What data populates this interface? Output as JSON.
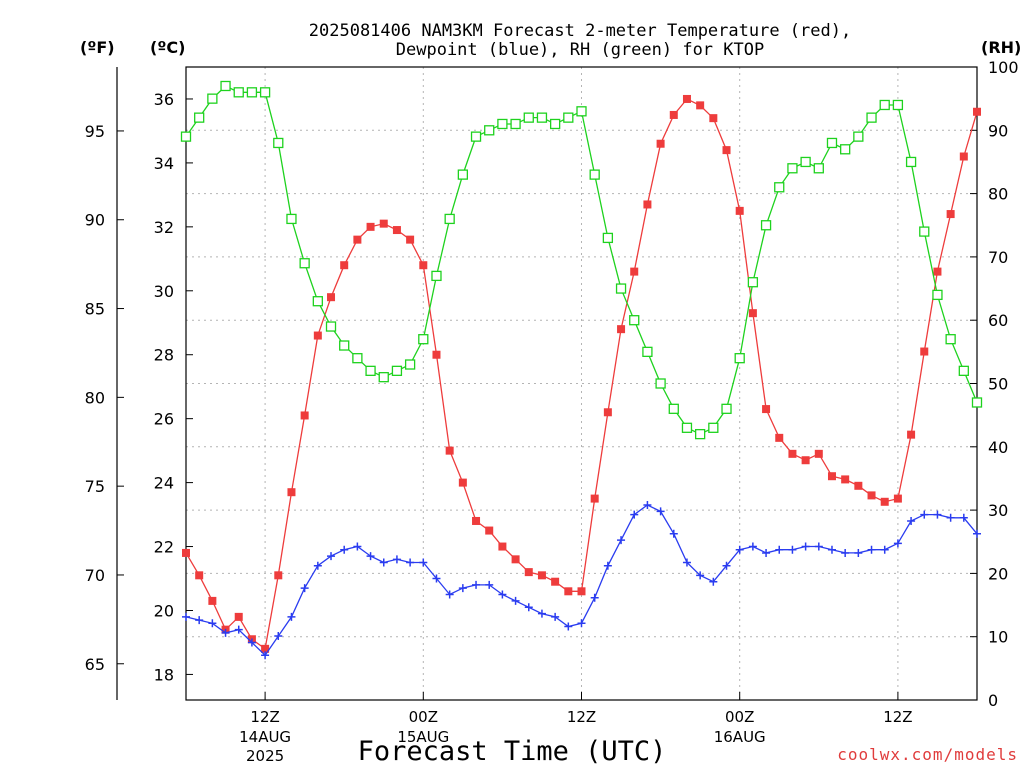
{
  "chart_data": {
    "type": "line",
    "title_line1": "2025081406 NAM3KM Forecast 2-meter Temperature (red),",
    "title_line2": "Dewpoint (blue), RH (green) for KTOP",
    "unit_left_f": "(ºF)",
    "unit_left_c": "(ºC)",
    "unit_right": "(RH)",
    "xlabel": "Forecast Time (UTC)",
    "credit": "coolwx.com/models",
    "x_ticks": [
      {
        "hour": 6,
        "l1": "12Z",
        "l2": "14AUG",
        "l3": "2025"
      },
      {
        "hour": 18,
        "l1": "00Z",
        "l2": "15AUG",
        "l3": ""
      },
      {
        "hour": 30,
        "l1": "12Z",
        "l2": "",
        "l3": ""
      },
      {
        "hour": 42,
        "l1": "00Z",
        "l2": "16AUG",
        "l3": ""
      },
      {
        "hour": 54,
        "l1": "12Z",
        "l2": "",
        "l3": ""
      }
    ],
    "x_start_hour": 0,
    "x_end_hour": 60,
    "celsius_ticks": [
      18,
      20,
      22,
      24,
      26,
      28,
      30,
      32,
      34,
      36
    ],
    "fahrenheit_ticks": [
      65,
      70,
      75,
      80,
      85,
      90,
      95
    ],
    "rh_ticks": [
      0,
      10,
      20,
      30,
      40,
      50,
      60,
      70,
      80,
      90,
      100
    ],
    "celsius_range": [
      17.2,
      37.0
    ],
    "rh_range": [
      0,
      100
    ],
    "grid": true,
    "series": [
      {
        "name": "Temperature (°C)",
        "color": "#ee3c3c",
        "marker": "filled-square",
        "values": [
          21.8,
          21.1,
          20.3,
          19.4,
          19.8,
          19.1,
          18.8,
          21.1,
          23.7,
          26.1,
          28.6,
          29.8,
          30.8,
          31.6,
          32.0,
          32.1,
          31.9,
          31.6,
          30.8,
          28.0,
          25.0,
          24.0,
          22.8,
          22.5,
          22.0,
          21.6,
          21.2,
          21.1,
          20.9,
          20.6,
          20.6,
          23.5,
          26.2,
          28.8,
          30.6,
          32.7,
          34.6,
          35.5,
          36.0,
          35.8,
          35.4,
          34.4,
          32.5,
          29.3,
          26.3,
          25.4,
          24.9,
          24.7,
          24.9,
          24.2,
          24.1,
          23.9,
          23.6,
          23.4,
          23.5,
          25.5,
          28.1,
          30.6,
          32.4,
          34.2,
          35.6
        ]
      },
      {
        "name": "Dewpoint (°C)",
        "color": "#2a3cf0",
        "marker": "plus",
        "values": [
          19.8,
          19.7,
          19.6,
          19.3,
          19.4,
          19.0,
          18.6,
          19.2,
          19.8,
          20.7,
          21.4,
          21.7,
          21.9,
          22.0,
          21.7,
          21.5,
          21.6,
          21.5,
          21.5,
          21.0,
          20.5,
          20.7,
          20.8,
          20.8,
          20.5,
          20.3,
          20.1,
          19.9,
          19.8,
          19.5,
          19.6,
          20.4,
          21.4,
          22.2,
          23.0,
          23.3,
          23.1,
          22.4,
          21.5,
          21.1,
          20.9,
          21.4,
          21.9,
          22.0,
          21.8,
          21.9,
          21.9,
          22.0,
          22.0,
          21.9,
          21.8,
          21.8,
          21.9,
          21.9,
          22.1,
          22.8,
          23.0,
          23.0,
          22.9,
          22.9,
          22.4
        ]
      },
      {
        "name": "RH (%)",
        "color": "#1ed21e",
        "marker": "open-square",
        "values": [
          89,
          92,
          95,
          97,
          96,
          96,
          96,
          88,
          76,
          69,
          63,
          59,
          56,
          54,
          52,
          51,
          52,
          53,
          57,
          67,
          76,
          83,
          89,
          90,
          91,
          91,
          92,
          92,
          91,
          92,
          93,
          83,
          73,
          65,
          60,
          55,
          50,
          46,
          43,
          42,
          43,
          46,
          54,
          66,
          75,
          81,
          84,
          85,
          84,
          88,
          87,
          89,
          92,
          94,
          94,
          85,
          74,
          64,
          57,
          52,
          47
        ]
      }
    ]
  }
}
